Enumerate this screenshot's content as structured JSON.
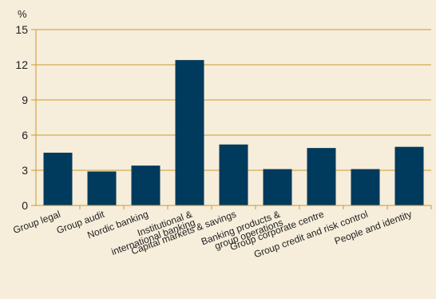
{
  "chart_data": {
    "type": "bar",
    "ylabel": "%",
    "ylim": [
      0,
      15
    ],
    "yticks": [
      0,
      3,
      6,
      9,
      12,
      15
    ],
    "grid": true,
    "categories": [
      "Group legal",
      "Group audit",
      "Nordic banking",
      "Institutional & international banking",
      "Capital markets & savings",
      "Banking products & group operations",
      "Group corporate centre",
      "Group credit and risk control",
      "People and identity"
    ],
    "category_lines": [
      [
        "Group legal"
      ],
      [
        "Group audit"
      ],
      [
        "Nordic banking"
      ],
      [
        "Institutional &",
        "international banking"
      ],
      [
        "Capital markets & savings"
      ],
      [
        "Banking products &",
        "group operations"
      ],
      [
        "Group corporate centre"
      ],
      [
        "Group credit and risk control"
      ],
      [
        "People and identity"
      ]
    ],
    "values": [
      4.5,
      2.9,
      3.4,
      12.4,
      5.2,
      3.1,
      4.9,
      3.1,
      5.0
    ],
    "colors": {
      "bar": "#003a5d",
      "axis": "#c99a2e",
      "grid": "#c99a2e",
      "background": "#f6eddb"
    }
  }
}
